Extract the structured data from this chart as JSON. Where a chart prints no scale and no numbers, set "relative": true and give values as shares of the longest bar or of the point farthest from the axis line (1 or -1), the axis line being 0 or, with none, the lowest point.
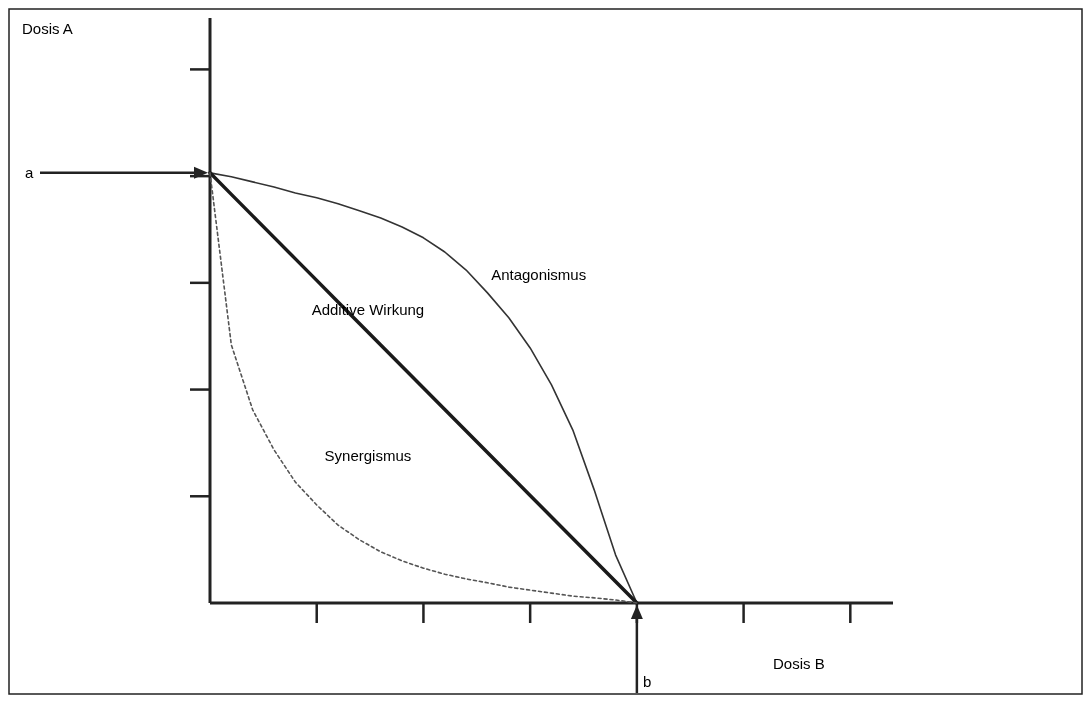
{
  "chart_data": {
    "type": "line",
    "relative": true,
    "xlabel": "Dosis B",
    "grid": false,
    "categories": [
      null,
      null,
      null,
      null,
      null,
      null,
      null,
      null,
      null,
      null,
      null,
      null,
      null,
      null,
      null,
      null,
      null,
      null,
      null,
      null,
      null,
      null,
      null,
      null,
      null,
      null,
      null,
      null,
      null,
      null,
      null,
      null,
      null
    ],
    "series": [
      {
        "name": "Antagonismus",
        "color": "#333333",
        "line_style": "solid",
        "values": [
          1,
          0.991,
          0.979,
          0.967,
          0.953,
          0.942,
          0.928,
          0.912,
          0.895,
          0.874,
          0.849,
          0.816,
          0.774,
          0.721,
          0.663,
          0.593,
          0.507,
          0.402,
          0.263,
          0.112,
          0,
          null,
          null,
          null,
          null,
          null,
          null,
          null,
          null,
          null,
          null,
          null,
          null
        ]
      },
      {
        "name": "Additive Wirkung",
        "color": "#1a1a1a",
        "line_style": "solid",
        "values": [
          1,
          0.95,
          0.9,
          0.85,
          0.8,
          0.75,
          0.7,
          0.65,
          0.6,
          0.55,
          0.5,
          0.45,
          0.4,
          0.35,
          0.3,
          0.25,
          0.2,
          0.15,
          0.1,
          0.05,
          0,
          null,
          null,
          null,
          null,
          null,
          null,
          null,
          null,
          null,
          null,
          null,
          null
        ]
      },
      {
        "name": "Synergismus",
        "color": "#555555",
        "line_style": "dotted",
        "values": [
          1,
          0.6,
          0.449,
          0.356,
          0.281,
          0.228,
          0.181,
          0.147,
          0.119,
          0.098,
          0.081,
          0.067,
          0.056,
          0.047,
          0.037,
          0.03,
          0.023,
          0.016,
          0.012,
          0.007,
          0,
          null,
          null,
          null,
          null,
          null,
          null,
          null,
          null,
          null,
          null,
          null,
          null
        ]
      }
    ],
    "annotations": [
      "a",
      "b",
      "Dosis A"
    ]
  }
}
